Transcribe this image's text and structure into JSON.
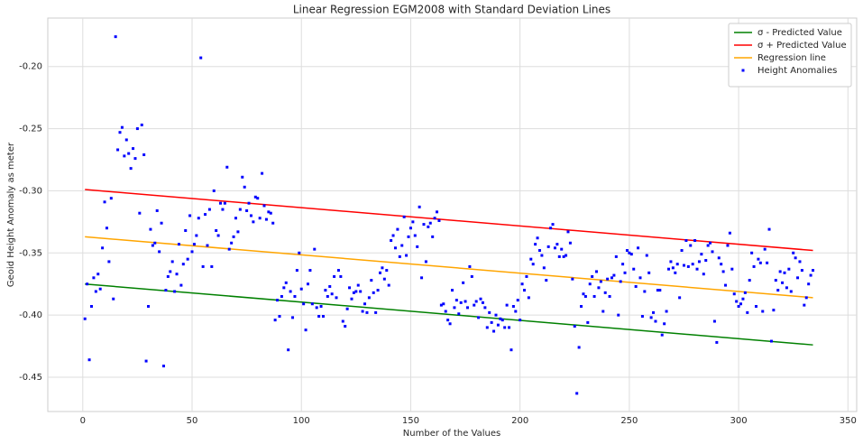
{
  "chart_data": {
    "type": "scatter",
    "title": "Linear Regression EGM2008 with Standard Deviation Lines",
    "x_label": "Number of the Values",
    "y_label": "Geoid Height Anomaly as meter",
    "xlim": [
      -16,
      354
    ],
    "ylim": [
      -0.4776,
      -0.161
    ],
    "xticks": [
      0,
      50,
      100,
      150,
      200,
      250,
      300,
      350
    ],
    "yticks": [
      -0.45,
      {
        "value": -0.4,
        "label": "-0.40"
      },
      -0.35,
      {
        "value": -0.3,
        "label": "-0.30"
      },
      -0.25,
      {
        "value": -0.2,
        "label": "-0.20"
      }
    ],
    "grid": true,
    "legend": "upper right",
    "series": [
      {
        "name": "σ - Predicted Value",
        "color": "#008000",
        "mode": "line",
        "x": [
          1,
          334
        ],
        "values": [
          -0.375,
          -0.424
        ]
      },
      {
        "name": "σ + Predicted Value",
        "color": "#ff0000",
        "mode": "line",
        "x": [
          1,
          334
        ],
        "values": [
          -0.299,
          -0.348
        ]
      },
      {
        "name": "Regression line",
        "color": "#ffa500",
        "mode": "line",
        "x": [
          1,
          334
        ],
        "values": [
          -0.337,
          -0.386
        ]
      },
      {
        "name": "Height Anomalies",
        "color": "#0000ff",
        "mode": "markers",
        "x": [
          1,
          2,
          3,
          4,
          5,
          6,
          7,
          8,
          9,
          10,
          11,
          12,
          13,
          14,
          15,
          16,
          17,
          18,
          19,
          20,
          21,
          22,
          23,
          24,
          25,
          26,
          27,
          28,
          29,
          30,
          31,
          32,
          33,
          34,
          35,
          36,
          37,
          38,
          39,
          40,
          41,
          42,
          43,
          44,
          45,
          46,
          47,
          48,
          49,
          50,
          51,
          52,
          53,
          54,
          55,
          56,
          57,
          58,
          59,
          60,
          61,
          62,
          63,
          64,
          65,
          66,
          67,
          68,
          69,
          70,
          71,
          72,
          73,
          74,
          75,
          76,
          77,
          78,
          79,
          80,
          81,
          82,
          83,
          84,
          85,
          86,
          87,
          88,
          89,
          90,
          91,
          92,
          93,
          94,
          95,
          96,
          97,
          98,
          99,
          100,
          101,
          102,
          103,
          104,
          105,
          106,
          107,
          108,
          109,
          110,
          111,
          112,
          113,
          114,
          115,
          116,
          117,
          118,
          119,
          120,
          121,
          122,
          123,
          124,
          125,
          126,
          127,
          128,
          129,
          130,
          131,
          132,
          133,
          134,
          135,
          136,
          137,
          138,
          139,
          140,
          141,
          142,
          143,
          144,
          145,
          146,
          147,
          148,
          149,
          150,
          151,
          152,
          153,
          154,
          155,
          156,
          157,
          158,
          159,
          160,
          161,
          162,
          163,
          164,
          165,
          166,
          167,
          168,
          169,
          170,
          171,
          172,
          173,
          174,
          175,
          176,
          177,
          178,
          179,
          180,
          181,
          182,
          183,
          184,
          185,
          186,
          187,
          188,
          189,
          190,
          191,
          192,
          193,
          194,
          195,
          196,
          197,
          198,
          199,
          200,
          201,
          202,
          203,
          204,
          205,
          206,
          207,
          208,
          209,
          210,
          211,
          212,
          213,
          214,
          215,
          216,
          217,
          218,
          219,
          220,
          221,
          222,
          223,
          224,
          225,
          226,
          227,
          228,
          229,
          230,
          231,
          232,
          233,
          234,
          235,
          236,
          237,
          238,
          239,
          240,
          241,
          242,
          243,
          244,
          245,
          246,
          247,
          248,
          249,
          250,
          251,
          252,
          253,
          254,
          255,
          256,
          257,
          258,
          259,
          260,
          261,
          262,
          263,
          264,
          265,
          266,
          267,
          268,
          269,
          270,
          271,
          272,
          273,
          274,
          275,
          276,
          277,
          278,
          279,
          280,
          281,
          282,
          283,
          284,
          285,
          286,
          287,
          288,
          289,
          290,
          291,
          292,
          293,
          294,
          295,
          296,
          297,
          298,
          299,
          300,
          301,
          302,
          303,
          304,
          305,
          306,
          307,
          308,
          309,
          310,
          311,
          312,
          313,
          314,
          315,
          316,
          317,
          318,
          319,
          320,
          321,
          322,
          323,
          324,
          325,
          326,
          327,
          328,
          329,
          330,
          331,
          332,
          333,
          334
        ],
        "values": [
          -0.403,
          -0.375,
          -0.436,
          -0.393,
          -0.37,
          -0.381,
          -0.367,
          -0.379,
          -0.346,
          -0.309,
          -0.33,
          -0.357,
          -0.306,
          -0.387,
          -0.176,
          -0.267,
          -0.253,
          -0.249,
          -0.272,
          -0.259,
          -0.27,
          -0.282,
          -0.266,
          -0.274,
          -0.25,
          -0.318,
          -0.247,
          -0.271,
          -0.437,
          -0.393,
          -0.331,
          -0.344,
          -0.342,
          -0.316,
          -0.349,
          -0.326,
          -0.441,
          -0.38,
          -0.369,
          -0.365,
          -0.357,
          -0.381,
          -0.367,
          -0.343,
          -0.376,
          -0.359,
          -0.332,
          -0.355,
          -0.32,
          -0.349,
          -0.343,
          -0.336,
          -0.322,
          -0.193,
          -0.361,
          -0.319,
          -0.344,
          -0.315,
          -0.361,
          -0.3,
          -0.332,
          -0.336,
          -0.31,
          -0.315,
          -0.31,
          -0.281,
          -0.347,
          -0.342,
          -0.337,
          -0.322,
          -0.333,
          -0.315,
          -0.289,
          -0.297,
          -0.316,
          -0.31,
          -0.32,
          -0.325,
          -0.305,
          -0.306,
          -0.322,
          -0.286,
          -0.312,
          -0.323,
          -0.317,
          -0.318,
          -0.326,
          -0.404,
          -0.388,
          -0.401,
          -0.385,
          -0.378,
          -0.374,
          -0.428,
          -0.381,
          -0.402,
          -0.385,
          -0.364,
          -0.35,
          -0.379,
          -0.391,
          -0.412,
          -0.375,
          -0.364,
          -0.391,
          -0.347,
          -0.394,
          -0.401,
          -0.393,
          -0.401,
          -0.38,
          -0.385,
          -0.377,
          -0.383,
          -0.369,
          -0.386,
          -0.364,
          -0.369,
          -0.405,
          -0.409,
          -0.395,
          -0.378,
          -0.387,
          -0.382,
          -0.381,
          -0.376,
          -0.381,
          -0.397,
          -0.391,
          -0.398,
          -0.386,
          -0.372,
          -0.382,
          -0.398,
          -0.38,
          -0.366,
          -0.362,
          -0.371,
          -0.364,
          -0.376,
          -0.34,
          -0.336,
          -0.346,
          -0.331,
          -0.353,
          -0.344,
          -0.321,
          -0.352,
          -0.337,
          -0.33,
          -0.325,
          -0.336,
          -0.345,
          -0.313,
          -0.37,
          -0.327,
          -0.357,
          -0.329,
          -0.326,
          -0.337,
          -0.322,
          -0.317,
          -0.324,
          -0.392,
          -0.391,
          -0.397,
          -0.404,
          -0.407,
          -0.38,
          -0.394,
          -0.388,
          -0.399,
          -0.39,
          -0.374,
          -0.389,
          -0.394,
          -0.361,
          -0.369,
          -0.392,
          -0.389,
          -0.402,
          -0.387,
          -0.39,
          -0.394,
          -0.41,
          -0.398,
          -0.406,
          -0.413,
          -0.4,
          -0.408,
          -0.403,
          -0.404,
          -0.41,
          -0.392,
          -0.41,
          -0.428,
          -0.393,
          -0.397,
          -0.388,
          -0.404,
          -0.375,
          -0.38,
          -0.369,
          -0.386,
          -0.355,
          -0.359,
          -0.343,
          -0.338,
          -0.348,
          -0.352,
          -0.362,
          -0.372,
          -0.345,
          -0.33,
          -0.327,
          -0.346,
          -0.343,
          -0.353,
          -0.347,
          -0.353,
          -0.352,
          -0.333,
          -0.342,
          -0.371,
          -0.409,
          -0.463,
          -0.426,
          -0.393,
          -0.383,
          -0.385,
          -0.406,
          -0.375,
          -0.369,
          -0.385,
          -0.365,
          -0.378,
          -0.373,
          -0.397,
          -0.382,
          -0.371,
          -0.385,
          -0.37,
          -0.368,
          -0.353,
          -0.4,
          -0.373,
          -0.359,
          -0.366,
          -0.348,
          -0.35,
          -0.351,
          -0.363,
          -0.377,
          -0.346,
          -0.37,
          -0.401,
          -0.381,
          -0.352,
          -0.366,
          -0.402,
          -0.398,
          -0.405,
          -0.38,
          -0.38,
          -0.416,
          -0.407,
          -0.397,
          -0.363,
          -0.357,
          -0.362,
          -0.366,
          -0.359,
          -0.386,
          -0.348,
          -0.36,
          -0.34,
          -0.361,
          -0.344,
          -0.359,
          -0.34,
          -0.363,
          -0.357,
          -0.351,
          -0.367,
          -0.356,
          -0.344,
          -0.342,
          -0.349,
          -0.405,
          -0.422,
          -0.354,
          -0.359,
          -0.365,
          -0.376,
          -0.344,
          -0.334,
          -0.363,
          -0.383,
          -0.389,
          -0.393,
          -0.391,
          -0.387,
          -0.382,
          -0.398,
          -0.372,
          -0.35,
          -0.361,
          -0.393,
          -0.355,
          -0.358,
          -0.397,
          -0.347,
          -0.358,
          -0.331,
          -0.421,
          -0.396,
          -0.372,
          -0.38,
          -0.365,
          -0.374,
          -0.366,
          -0.378,
          -0.363,
          -0.381,
          -0.35,
          -0.354,
          -0.37,
          -0.357,
          -0.364,
          -0.392,
          -0.386,
          -0.375,
          -0.368,
          -0.364
        ]
      }
    ]
  }
}
